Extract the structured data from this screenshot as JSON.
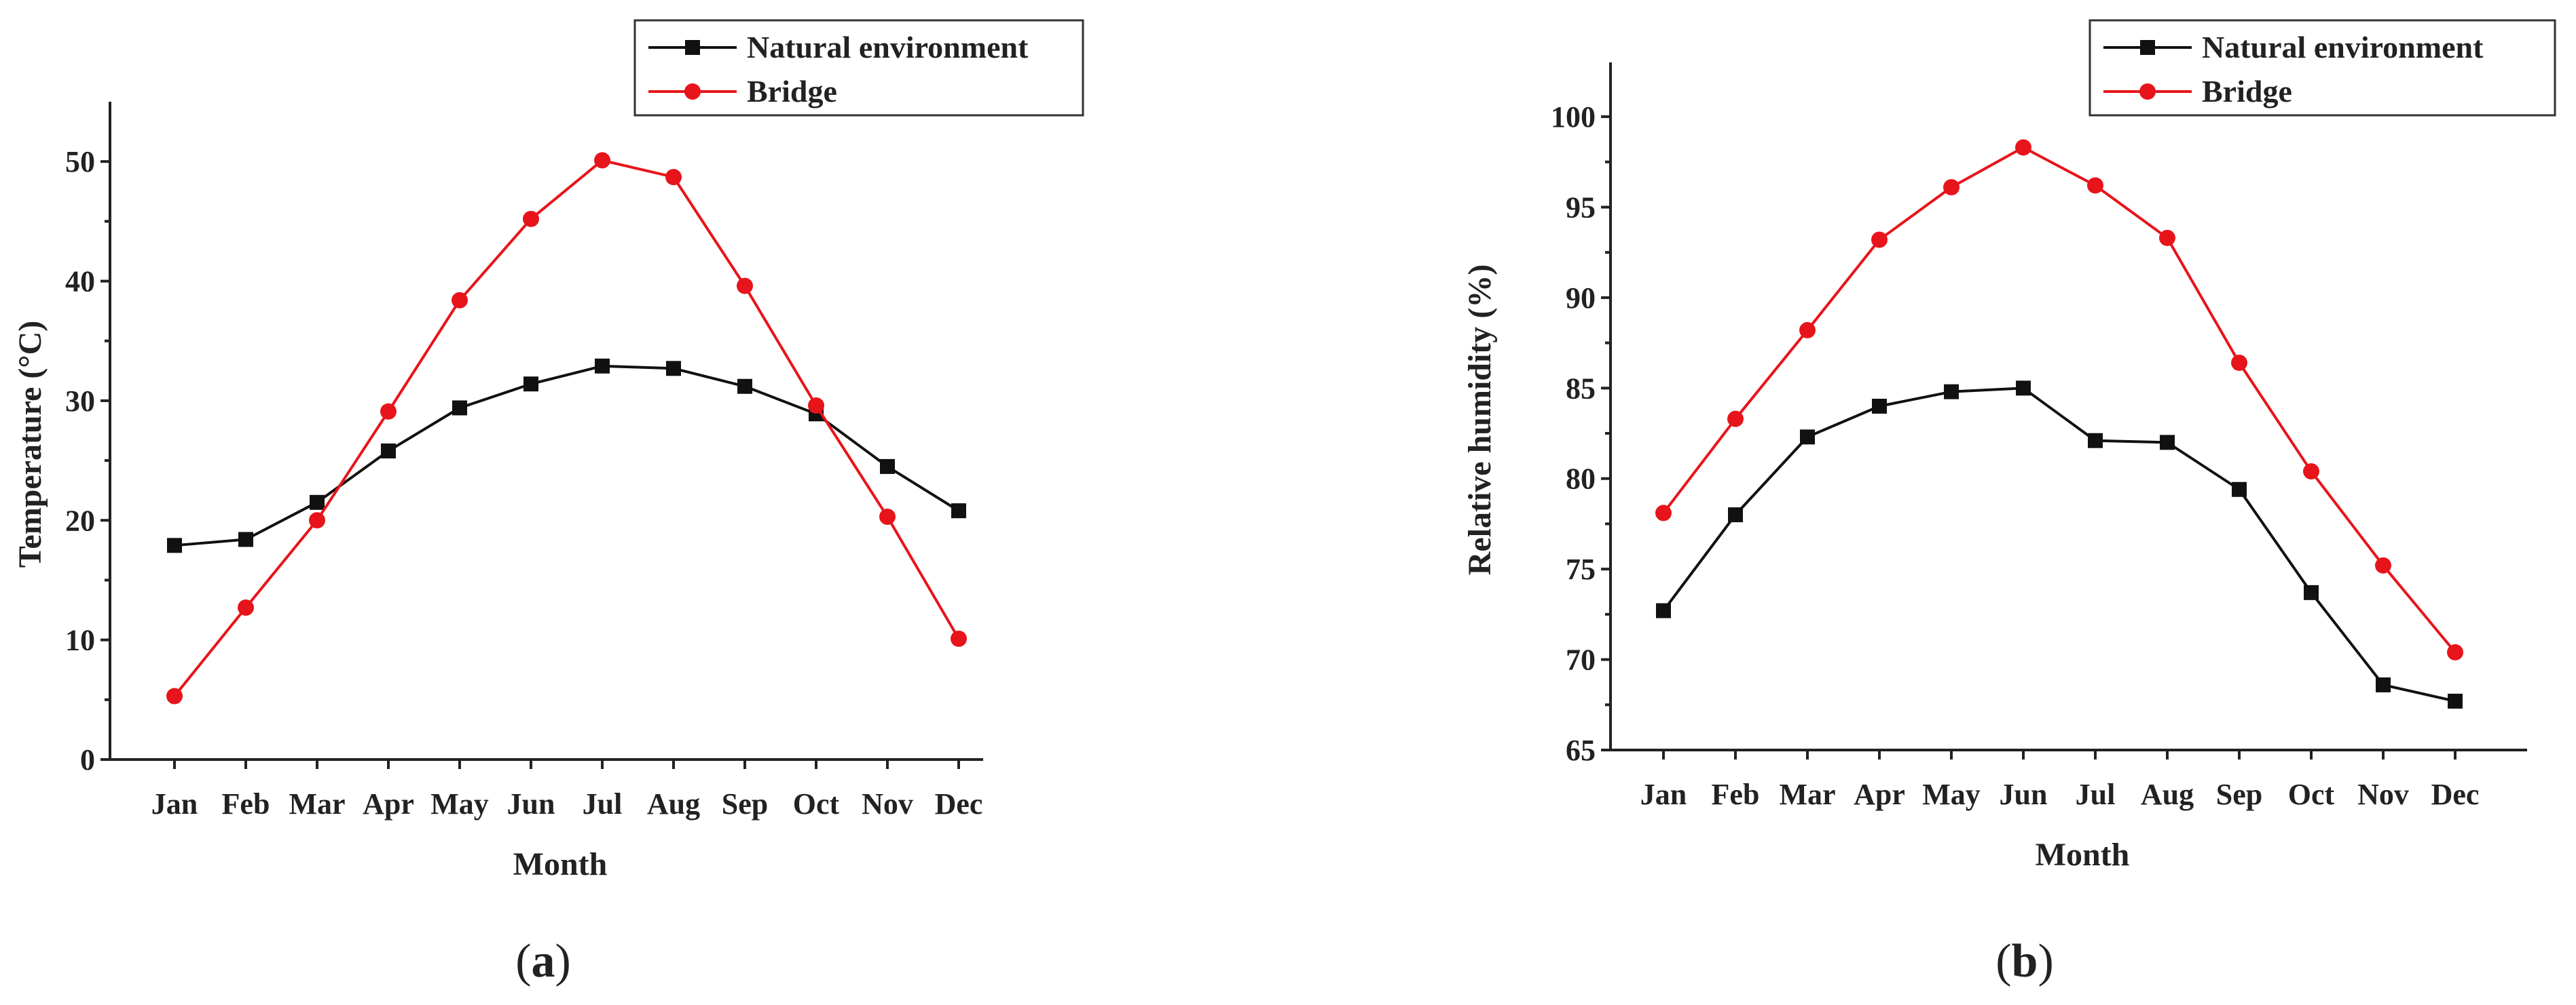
{
  "chart_data": [
    {
      "type": "line",
      "panel": "a",
      "xlabel": "Month",
      "ylabel": "Temperature (°C)",
      "categories": [
        "Jan",
        "Feb",
        "Mar",
        "Apr",
        "May",
        "Jun",
        "Jul",
        "Aug",
        "Sep",
        "Oct",
        "Nov",
        "Dec"
      ],
      "ylim": [
        0,
        55
      ],
      "yticks": [
        0,
        10,
        20,
        30,
        40,
        50
      ],
      "series": [
        {
          "name": "Natural environment",
          "color": "#111111",
          "marker": "square",
          "values": [
            17.9,
            18.4,
            21.5,
            25.8,
            29.4,
            31.4,
            32.9,
            32.7,
            31.2,
            28.9,
            24.5,
            20.8
          ]
        },
        {
          "name": "Bridge",
          "color": "#e8141b",
          "marker": "circle",
          "values": [
            5.3,
            12.7,
            20.0,
            29.1,
            38.4,
            45.2,
            50.1,
            48.7,
            39.6,
            29.6,
            20.3,
            10.1
          ]
        }
      ],
      "legend": "top-right",
      "caption_open": "(",
      "caption_letter": "a",
      "caption_close": ")"
    },
    {
      "type": "line",
      "panel": "b",
      "xlabel": "Month",
      "ylabel": "Relative humidity (%)",
      "categories": [
        "Jan",
        "Feb",
        "Mar",
        "Apr",
        "May",
        "Jun",
        "Jul",
        "Aug",
        "Sep",
        "Oct",
        "Nov",
        "Dec"
      ],
      "ylim": [
        65,
        103
      ],
      "yticks": [
        65,
        70,
        75,
        80,
        85,
        90,
        95,
        100
      ],
      "series": [
        {
          "name": "Natural environment",
          "color": "#111111",
          "marker": "square",
          "values": [
            72.7,
            78.0,
            82.3,
            84.0,
            84.8,
            85.0,
            82.1,
            82.0,
            79.4,
            73.7,
            68.6,
            67.7
          ]
        },
        {
          "name": "Bridge",
          "color": "#e8141b",
          "marker": "circle",
          "values": [
            78.1,
            83.3,
            88.2,
            93.2,
            96.1,
            98.3,
            96.2,
            93.3,
            86.4,
            80.4,
            75.2,
            70.4
          ]
        }
      ],
      "legend": "top-right",
      "caption_open": "(",
      "caption_letter": "b",
      "caption_close": ")"
    }
  ]
}
